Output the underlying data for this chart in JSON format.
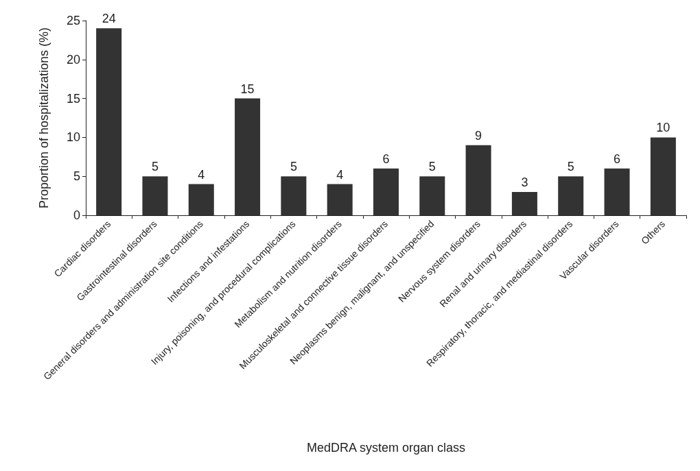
{
  "chart_data": {
    "type": "bar",
    "xlabel": "MedDRA system organ class",
    "ylabel": "Proportion of hospitalizations (%)",
    "categories": [
      "Cardiac disorders",
      "Gastrointestinal disorders",
      "General disorders and administration site conditions",
      "Infections and infestations",
      "Injury, poisoning, and procedural complications",
      "Metabolism and nutrition disorders",
      "Musculoskeletal and connective tissue disorders",
      "Neoplasms benign, malignant, and unspecified",
      "Nervous system disorders",
      "Renal and urinary disorders",
      "Respiratory, thoracic, and mediastinal disorders",
      "Vascular disorders",
      "Others"
    ],
    "values": [
      24,
      5,
      4,
      15,
      5,
      4,
      6,
      5,
      9,
      3,
      5,
      6,
      10
    ],
    "color": "#333333",
    "ylim": [
      0,
      25
    ],
    "yticks": [
      0,
      5,
      10,
      15,
      20,
      25
    ],
    "grid": false,
    "data_labels": true
  }
}
